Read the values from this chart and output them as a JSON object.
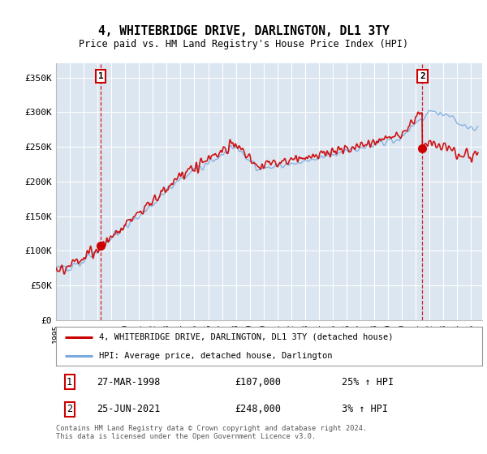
{
  "title": "4, WHITEBRIDGE DRIVE, DARLINGTON, DL1 3TY",
  "subtitle": "Price paid vs. HM Land Registry's House Price Index (HPI)",
  "background_color": "#dce6f1",
  "ylabel_ticks": [
    "£0",
    "£50K",
    "£100K",
    "£150K",
    "£200K",
    "£250K",
    "£300K",
    "£350K"
  ],
  "ytick_values": [
    0,
    50000,
    100000,
    150000,
    200000,
    250000,
    300000,
    350000
  ],
  "ylim": [
    0,
    370000
  ],
  "xlim_start": 1995.0,
  "xlim_end": 2025.8,
  "sale1_date": 1998.24,
  "sale1_price": 107000,
  "sale2_date": 2021.48,
  "sale2_price": 248000,
  "legend_line1": "4, WHITEBRIDGE DRIVE, DARLINGTON, DL1 3TY (detached house)",
  "legend_line2": "HPI: Average price, detached house, Darlington",
  "table_row1": [
    "1",
    "27-MAR-1998",
    "£107,000",
    "25% ↑ HPI"
  ],
  "table_row2": [
    "2",
    "25-JUN-2021",
    "£248,000",
    "3% ↑ HPI"
  ],
  "footer": "Contains HM Land Registry data © Crown copyright and database right 2024.\nThis data is licensed under the Open Government Licence v3.0.",
  "red_line_color": "#cc0000",
  "blue_line_color": "#7aaadd",
  "dashed_line_color": "#cc0000",
  "grid_color": "#ffffff"
}
